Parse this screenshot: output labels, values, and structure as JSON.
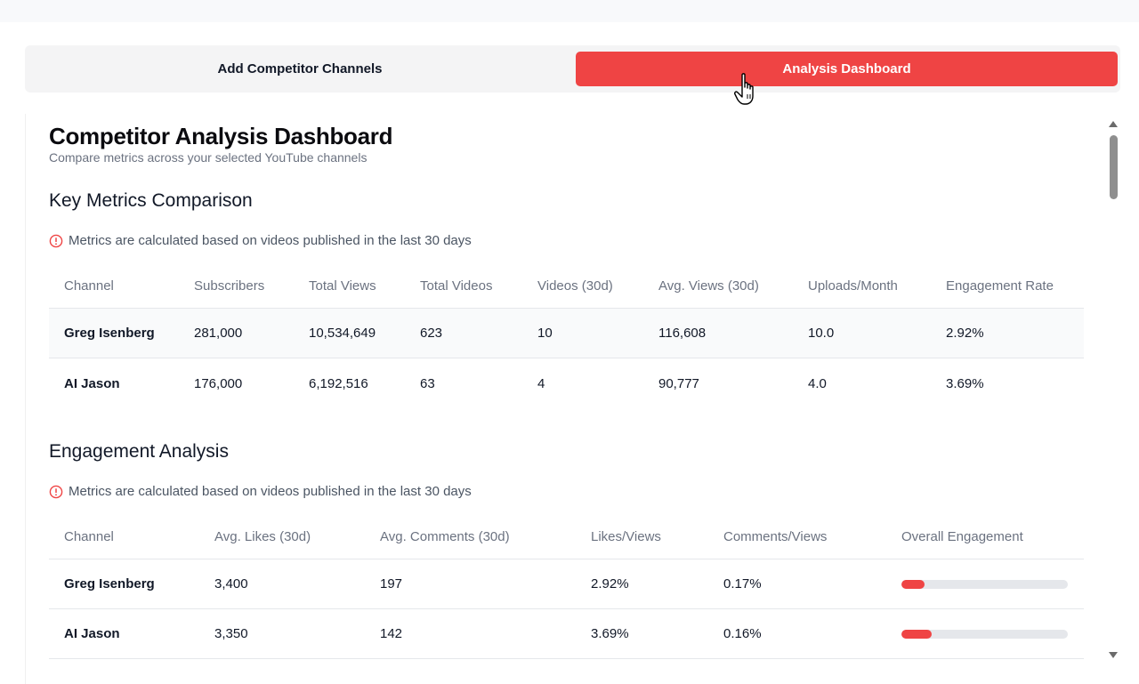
{
  "tabs": {
    "add_label": "Add Competitor Channels",
    "dashboard_label": "Analysis Dashboard",
    "active": "Analysis Dashboard"
  },
  "dashboard": {
    "title": "Competitor Analysis Dashboard",
    "subtitle": "Compare metrics across your selected YouTube channels"
  },
  "key_metrics": {
    "title": "Key Metrics Comparison",
    "note": "Metrics are calculated based on videos published in the last 30 days",
    "headers": [
      "Channel",
      "Subscribers",
      "Total Views",
      "Total Videos",
      "Videos (30d)",
      "Avg. Views (30d)",
      "Uploads/Month",
      "Engagement Rate"
    ],
    "rows": [
      [
        "Greg Isenberg",
        "281,000",
        "10,534,649",
        "623",
        "10",
        "116,608",
        "10.0",
        "2.92%"
      ],
      [
        "AI Jason",
        "176,000",
        "6,192,516",
        "63",
        "4",
        "90,777",
        "4.0",
        "3.69%"
      ]
    ]
  },
  "engagement": {
    "title": "Engagement Analysis",
    "note": "Metrics are calculated based on videos published in the last 30 days",
    "headers": [
      "Channel",
      "Avg. Likes (30d)",
      "Avg. Comments (30d)",
      "Likes/Views",
      "Comments/Views",
      "Overall Engagement"
    ],
    "rows": [
      [
        "Greg Isenberg",
        "3,400",
        "197",
        "2.92%",
        "0.17%"
      ],
      [
        "AI Jason",
        "3,350",
        "142",
        "3.69%",
        "0.16%"
      ]
    ],
    "overall_engagement_fraction": [
      0.14,
      0.18
    ]
  },
  "colors": {
    "accent": "#ef4444",
    "info_icon": "#ef4444",
    "bar_track": "#e5e7eb"
  },
  "icons": {
    "info": "info-circle-icon",
    "cursor": "hand-pointer-icon"
  }
}
